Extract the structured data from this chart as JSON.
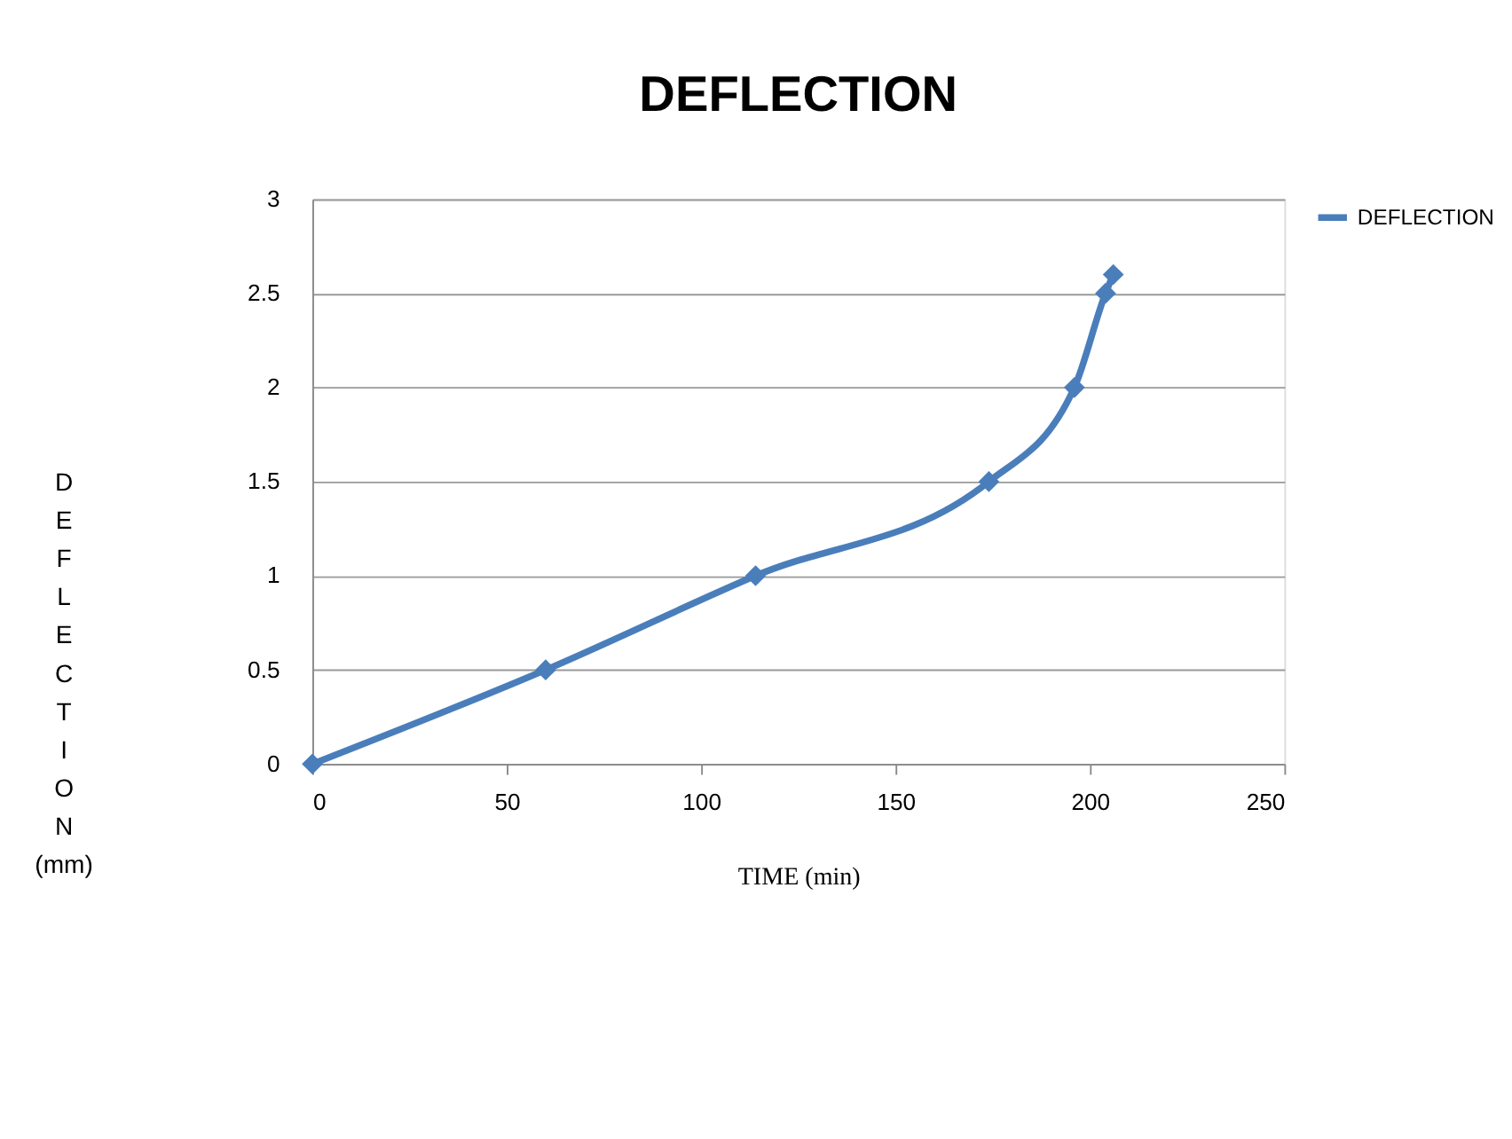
{
  "chart_data": {
    "type": "line",
    "title": "DEFLECTION",
    "xlabel": "TIME (min)",
    "ylabel": "DEFLECTION (mm)",
    "x": [
      0,
      60,
      114,
      174,
      196,
      204,
      206
    ],
    "series": [
      {
        "name": "DEFLECTION",
        "color": "#4a7ebb",
        "values": [
          0,
          0.5,
          1.0,
          1.5,
          2.0,
          2.5,
          2.6
        ]
      }
    ],
    "xlim": [
      0,
      250
    ],
    "xticks": [
      0,
      50,
      100,
      150,
      200,
      250
    ],
    "ylim": [
      0,
      3
    ],
    "yticks": [
      0,
      0.5,
      1,
      1.5,
      2,
      2.5,
      3
    ],
    "grid": "y",
    "legend": "right",
    "marker": "diamond",
    "line_style": "solid"
  }
}
